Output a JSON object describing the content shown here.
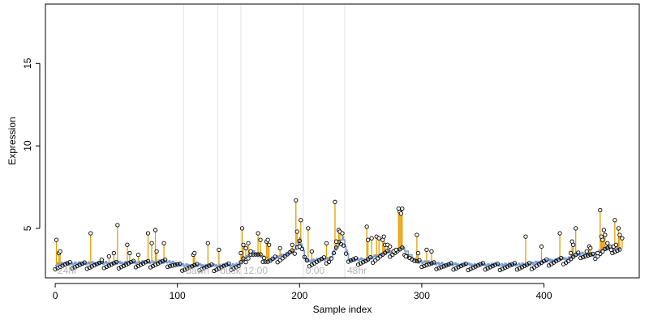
{
  "chart_data": {
    "type": "scatter",
    "title": "",
    "xlabel": "Sample index",
    "ylabel": "Expression",
    "xlim": [
      -8,
      478
    ],
    "ylim": [
      2.0,
      18.6
    ],
    "xticks": [
      0,
      100,
      200,
      300,
      400
    ],
    "yticks": [
      5,
      10,
      15
    ],
    "xtick_labels": [
      "0",
      "100",
      "200",
      "300",
      "400"
    ],
    "ytick_labels": [
      "5",
      "10",
      "15"
    ],
    "grid": false,
    "legend": "none",
    "colors": {
      "stem": "#e69f00",
      "fit_line": "#7a9fd8",
      "divider": "#e0e0e0",
      "region_label": "#b5b5b5",
      "point_edge": "#000000"
    },
    "region_boundaries": [
      105,
      133,
      152,
      203,
      237
    ],
    "regions": [
      {
        "label": "24hr",
        "x_start": 0
      },
      {
        "label": "dawn",
        "x_start": 105
      },
      {
        "label": "dusk",
        "x_start": 133
      },
      {
        "label": "12:00",
        "x_start": 152
      },
      {
        "label": "0:00",
        "x_start": 203
      },
      {
        "label": "48hr",
        "x_start": 237
      }
    ],
    "baseline": [
      [
        0,
        2.85
      ],
      [
        50,
        2.9
      ],
      [
        90,
        3.0
      ],
      [
        105,
        2.75
      ],
      [
        133,
        2.75
      ],
      [
        150,
        2.8
      ],
      [
        160,
        3.6
      ],
      [
        175,
        3.1
      ],
      [
        195,
        3.6
      ],
      [
        200,
        4.4
      ],
      [
        205,
        3.0
      ],
      [
        225,
        3.2
      ],
      [
        235,
        4.5
      ],
      [
        240,
        3.1
      ],
      [
        255,
        3.1
      ],
      [
        265,
        3.4
      ],
      [
        275,
        3.6
      ],
      [
        285,
        3.8
      ],
      [
        295,
        3.0
      ],
      [
        320,
        2.8
      ],
      [
        350,
        2.8
      ],
      [
        385,
        2.8
      ],
      [
        400,
        3.0
      ],
      [
        420,
        3.2
      ],
      [
        430,
        3.5
      ],
      [
        440,
        3.4
      ],
      [
        450,
        3.8
      ],
      [
        462,
        3.8
      ]
    ],
    "outliers": [
      [
        1,
        4.3
      ],
      [
        3,
        3.5
      ],
      [
        4,
        3.6
      ],
      [
        29,
        4.7
      ],
      [
        38,
        3.1
      ],
      [
        44,
        3.3
      ],
      [
        48,
        3.5
      ],
      [
        51,
        5.2
      ],
      [
        59,
        4.0
      ],
      [
        61,
        3.5
      ],
      [
        68,
        3.4
      ],
      [
        76,
        4.7
      ],
      [
        79,
        4.1
      ],
      [
        82,
        4.9
      ],
      [
        83,
        3.6
      ],
      [
        89,
        4.1
      ],
      [
        113,
        3.4
      ],
      [
        114,
        3.5
      ],
      [
        125,
        4.1
      ],
      [
        134,
        3.7
      ],
      [
        152,
        3.5
      ],
      [
        153,
        5.0
      ],
      [
        154,
        4.0
      ],
      [
        156,
        3.8
      ],
      [
        158,
        4.1
      ],
      [
        160,
        3.6
      ],
      [
        166,
        4.7
      ],
      [
        168,
        4.3
      ],
      [
        171,
        3.2
      ],
      [
        173,
        4.2
      ],
      [
        174,
        4.3
      ],
      [
        175,
        4.0
      ],
      [
        184,
        3.8
      ],
      [
        194,
        4.0
      ],
      [
        197,
        6.7
      ],
      [
        198,
        4.8
      ],
      [
        200,
        3.9
      ],
      [
        201,
        5.5
      ],
      [
        207,
        5.0
      ],
      [
        210,
        3.6
      ],
      [
        222,
        4.1
      ],
      [
        229,
        6.6
      ],
      [
        230,
        4.2
      ],
      [
        232,
        4.9
      ],
      [
        233,
        4.8
      ],
      [
        235,
        4.7
      ],
      [
        255,
        5.1
      ],
      [
        256,
        4.3
      ],
      [
        259,
        4.4
      ],
      [
        263,
        4.5
      ],
      [
        265,
        4.4
      ],
      [
        268,
        4.3
      ],
      [
        269,
        4.5
      ],
      [
        270,
        4.0
      ],
      [
        272,
        4.0
      ],
      [
        274,
        3.9
      ],
      [
        277,
        3.6
      ],
      [
        279,
        3.7
      ],
      [
        281,
        6.2
      ],
      [
        282,
        6.0
      ],
      [
        283,
        5.9
      ],
      [
        284,
        6.2
      ],
      [
        287,
        3.3
      ],
      [
        296,
        4.6
      ],
      [
        297,
        3.5
      ],
      [
        304,
        3.7
      ],
      [
        308,
        3.6
      ],
      [
        385,
        4.5
      ],
      [
        398,
        3.9
      ],
      [
        413,
        4.7
      ],
      [
        422,
        3.5
      ],
      [
        423,
        4.2
      ],
      [
        424,
        4.0
      ],
      [
        426,
        5.0
      ],
      [
        435,
        3.6
      ],
      [
        437,
        3.9
      ],
      [
        438,
        3.8
      ],
      [
        444,
        3.5
      ],
      [
        446,
        6.1
      ],
      [
        447,
        4.5
      ],
      [
        448,
        4.3
      ],
      [
        449,
        4.9
      ],
      [
        450,
        4.6
      ],
      [
        452,
        4.1
      ],
      [
        455,
        3.7
      ],
      [
        457,
        3.9
      ],
      [
        458,
        5.5
      ],
      [
        459,
        4.0
      ],
      [
        461,
        5.0
      ],
      [
        462,
        4.6
      ],
      [
        464,
        4.4
      ]
    ]
  }
}
